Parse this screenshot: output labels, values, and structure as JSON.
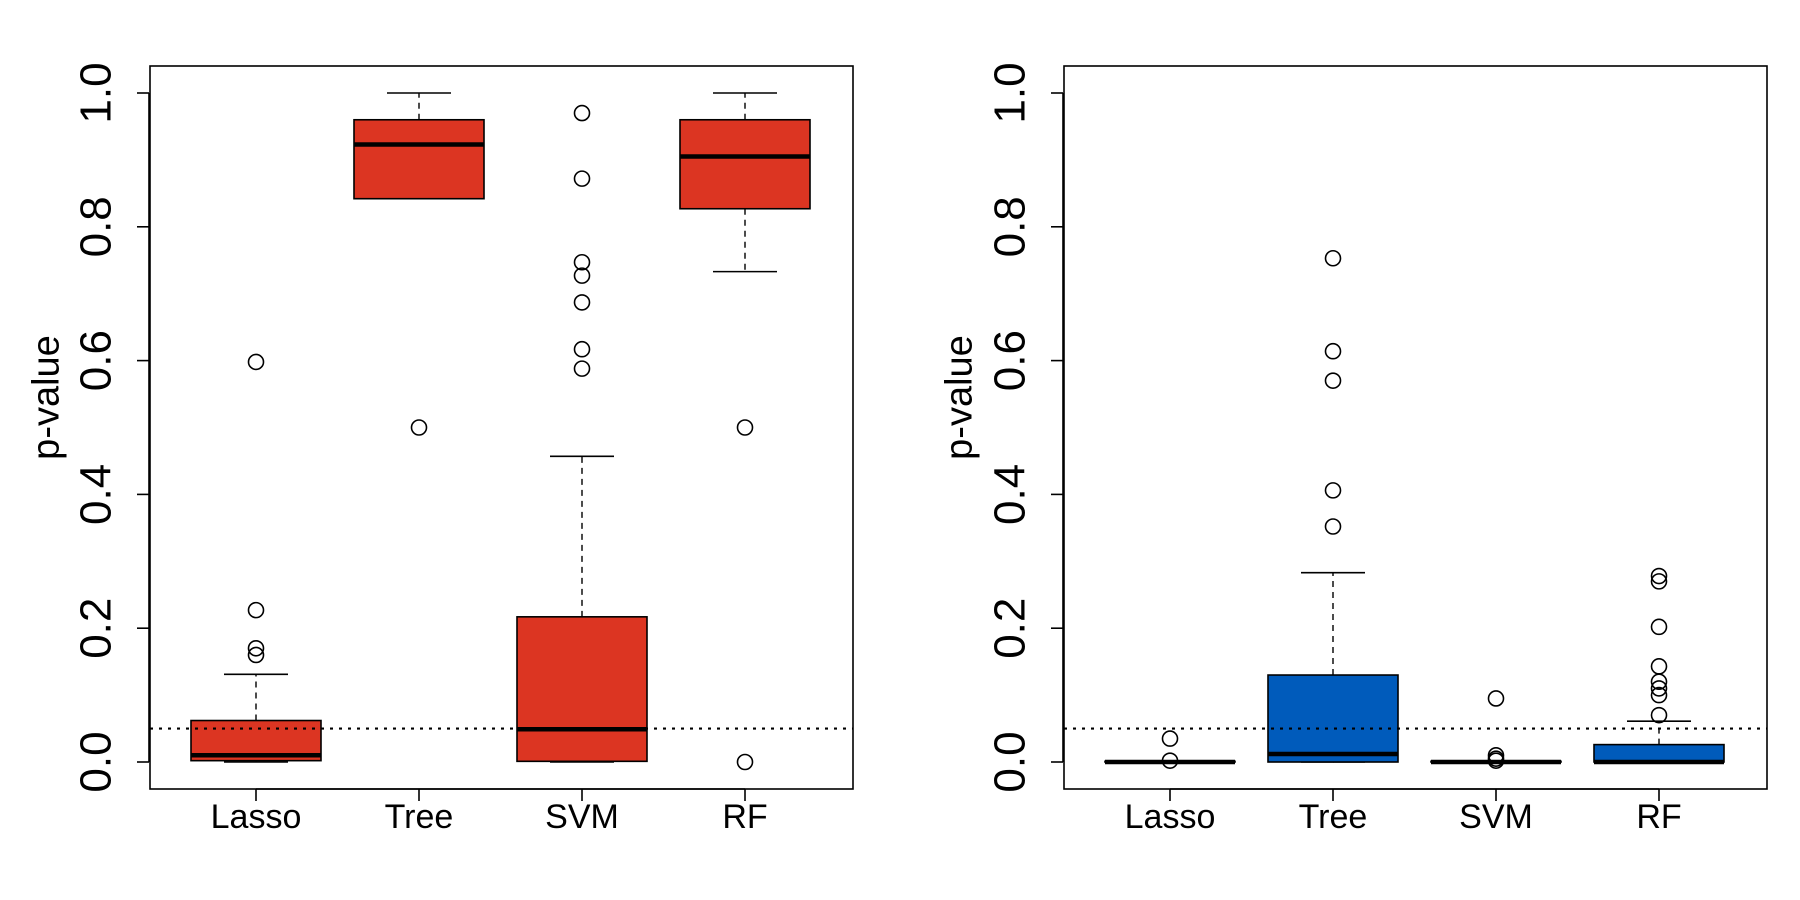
{
  "colors": {
    "left_fill": "#dc3522",
    "right_fill": "#005bbb",
    "stroke": "#000000"
  },
  "chart_data": [
    {
      "type": "boxplot",
      "ylabel": "p-value",
      "ylim": [
        0,
        1.0
      ],
      "yticks": [
        "0.0",
        "0.2",
        "0.4",
        "0.6",
        "0.8",
        "1.0"
      ],
      "reference_line": 0.05,
      "categories": [
        "Lasso",
        "Tree",
        "SVM",
        "RF"
      ],
      "boxes": [
        {
          "name": "Lasso",
          "whisker_low": 0.0,
          "q1": 0.002,
          "median": 0.01,
          "q3": 0.062,
          "whisker_high": 0.131,
          "outliers": [
            0.16,
            0.17,
            0.227,
            0.598
          ]
        },
        {
          "name": "Tree",
          "whisker_low": 0.842,
          "q1": 0.842,
          "median": 0.923,
          "q3": 0.96,
          "whisker_high": 1.0,
          "outliers": [
            0.5
          ]
        },
        {
          "name": "SVM",
          "whisker_low": 0.0,
          "q1": 0.001,
          "median": 0.049,
          "q3": 0.217,
          "whisker_high": 0.457,
          "outliers": [
            0.588,
            0.617,
            0.687,
            0.727,
            0.747,
            0.872,
            0.97
          ]
        },
        {
          "name": "RF",
          "whisker_low": 0.733,
          "q1": 0.827,
          "median": 0.905,
          "q3": 0.96,
          "whisker_high": 1.0,
          "outliers": [
            0.5,
            0.0
          ]
        }
      ]
    },
    {
      "type": "boxplot",
      "ylabel": "p-value",
      "ylim": [
        0,
        1.0
      ],
      "yticks": [
        "0.0",
        "0.2",
        "0.4",
        "0.6",
        "0.8",
        "1.0"
      ],
      "reference_line": 0.05,
      "categories": [
        "Lasso",
        "Tree",
        "SVM",
        "RF"
      ],
      "boxes": [
        {
          "name": "Lasso",
          "whisker_low": 0.0,
          "q1": 0.0,
          "median": 0.0,
          "q3": 0.001,
          "whisker_high": 0.001,
          "outliers": [
            0.035,
            0.002
          ]
        },
        {
          "name": "Tree",
          "whisker_low": 0.0,
          "q1": 0.0,
          "median": 0.012,
          "q3": 0.13,
          "whisker_high": 0.283,
          "outliers": [
            0.352,
            0.406,
            0.57,
            0.614,
            0.753
          ]
        },
        {
          "name": "SVM",
          "whisker_low": 0.0,
          "q1": 0.0,
          "median": 0.0,
          "q3": 0.001,
          "whisker_high": 0.001,
          "outliers": [
            0.095,
            0.01,
            0.005,
            0.002
          ]
        },
        {
          "name": "RF",
          "whisker_low": 0.0,
          "q1": 0.0,
          "median": 0.0,
          "q3": 0.026,
          "whisker_high": 0.061,
          "outliers": [
            0.07,
            0.1,
            0.11,
            0.12,
            0.143,
            0.202,
            0.27,
            0.278
          ]
        }
      ]
    }
  ]
}
